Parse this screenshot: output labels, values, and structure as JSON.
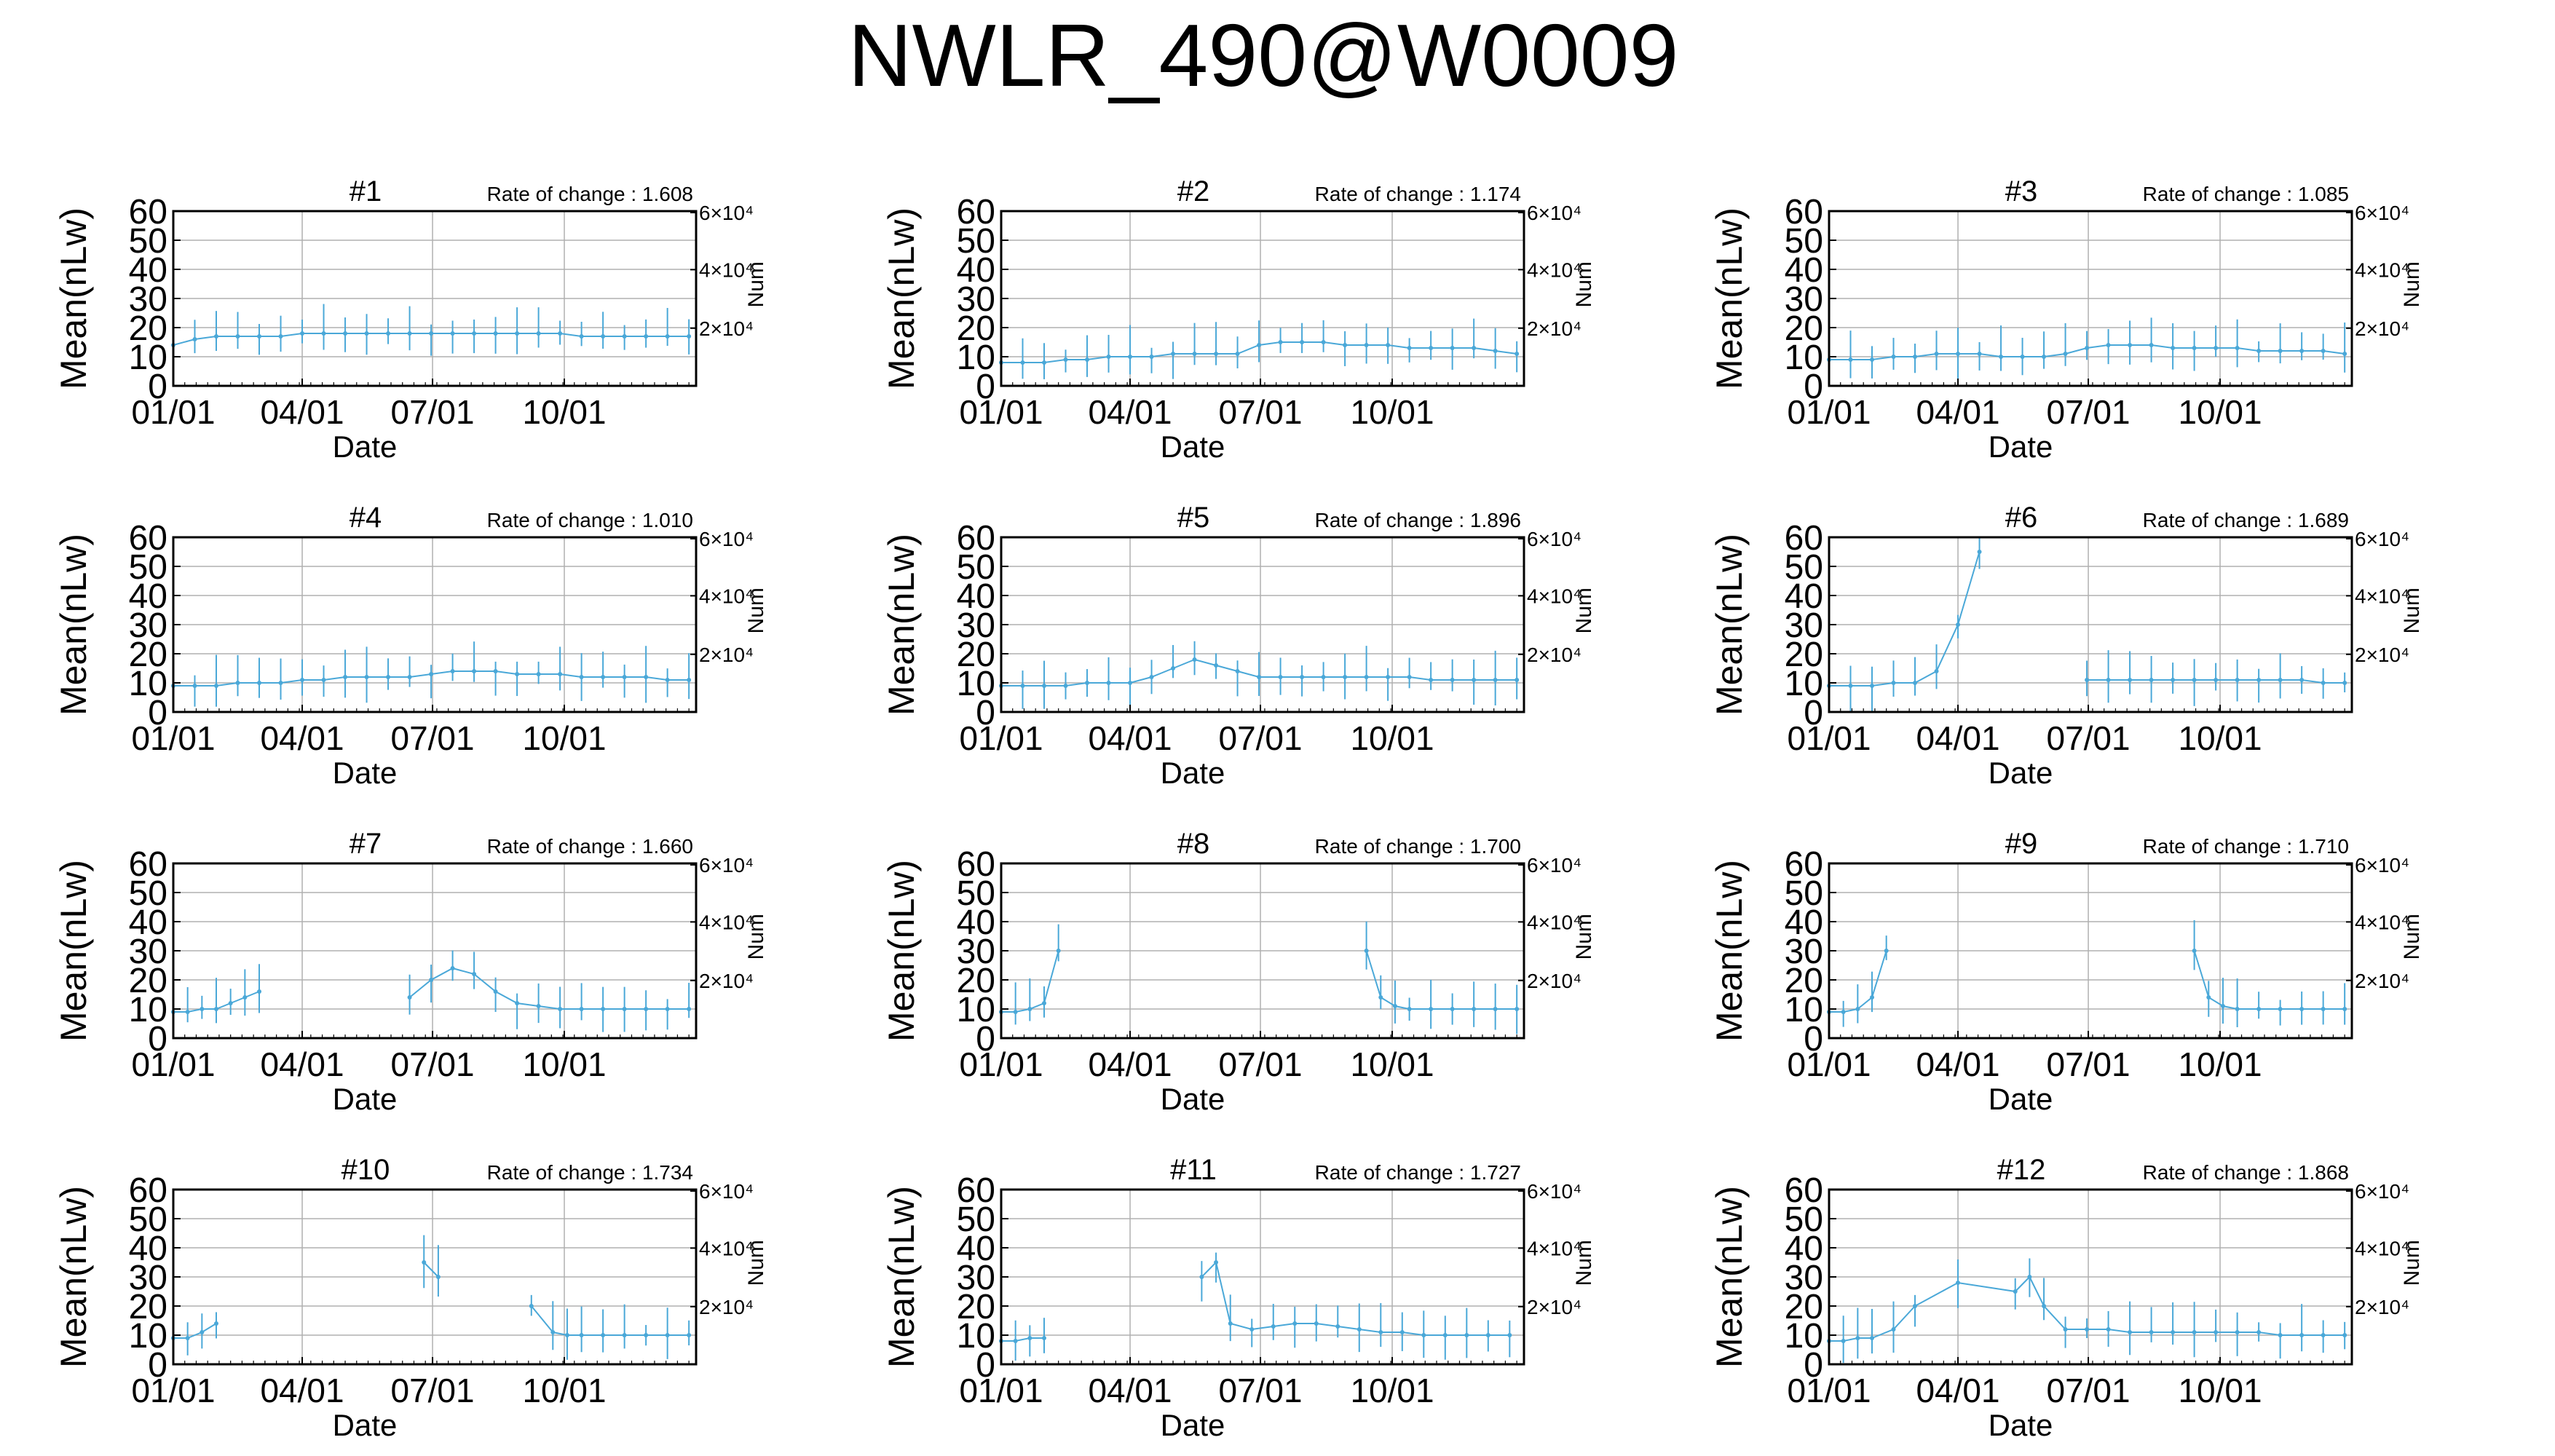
{
  "title": "NWLR_490@W0009",
  "colors": {
    "series": "#4aa8d8",
    "axis": "#000000",
    "grid": "#b0b0b0",
    "background": "#ffffff"
  },
  "chart_data": [
    {
      "type": "line",
      "panel_title": "#1",
      "rate_text": "Rate of change : 1.608",
      "xlabel": "Date",
      "ylabel": "Mean(nLw)",
      "y2label": "Num",
      "x_ticks": [
        "01/01",
        "04/01",
        "07/01",
        "10/01"
      ],
      "y_ticks": [
        0,
        10,
        20,
        30,
        40,
        50,
        60
      ],
      "y2_ticks": [
        "2×10⁴",
        "4×10⁴",
        "6×10⁴"
      ],
      "ylim": [
        0,
        60
      ],
      "xlim_days": [
        0,
        365
      ],
      "grid": true,
      "series": [
        {
          "x_days": [
            0,
            15,
            30,
            45,
            60,
            75,
            90,
            105,
            120,
            135,
            150,
            165,
            180,
            195,
            210,
            225,
            240,
            255,
            270,
            285,
            300,
            315,
            330,
            345,
            360
          ],
          "values": [
            14,
            16,
            17,
            17,
            17,
            17,
            18,
            18,
            18,
            18,
            18,
            18,
            18,
            18,
            18,
            18,
            18,
            18,
            18,
            17,
            17,
            17,
            17,
            17,
            17
          ]
        }
      ]
    },
    {
      "type": "line",
      "panel_title": "#2",
      "rate_text": "Rate of change : 1.174",
      "xlabel": "Date",
      "ylabel": "Mean(nLw)",
      "y2label": "Num",
      "x_ticks": [
        "01/01",
        "04/01",
        "07/01",
        "10/01"
      ],
      "y_ticks": [
        0,
        10,
        20,
        30,
        40,
        50,
        60
      ],
      "y2_ticks": [
        "2×10⁴",
        "4×10⁴",
        "6×10⁴"
      ],
      "ylim": [
        0,
        60
      ],
      "xlim_days": [
        0,
        365
      ],
      "grid": true,
      "series": [
        {
          "x_days": [
            0,
            15,
            30,
            45,
            60,
            75,
            90,
            105,
            120,
            135,
            150,
            165,
            180,
            195,
            210,
            225,
            240,
            255,
            270,
            285,
            300,
            315,
            330,
            345,
            360
          ],
          "values": [
            8,
            8,
            8,
            9,
            9,
            10,
            10,
            10,
            11,
            11,
            11,
            11,
            14,
            15,
            15,
            15,
            14,
            14,
            14,
            13,
            13,
            13,
            13,
            12,
            11
          ]
        }
      ]
    },
    {
      "type": "line",
      "panel_title": "#3",
      "rate_text": "Rate of change : 1.085",
      "xlabel": "Date",
      "ylabel": "Mean(nLw)",
      "y2label": "Num",
      "x_ticks": [
        "01/01",
        "04/01",
        "07/01",
        "10/01"
      ],
      "y_ticks": [
        0,
        10,
        20,
        30,
        40,
        50,
        60
      ],
      "y2_ticks": [
        "2×10⁴",
        "4×10⁴",
        "6×10⁴"
      ],
      "ylim": [
        0,
        60
      ],
      "xlim_days": [
        0,
        365
      ],
      "grid": true,
      "series": [
        {
          "x_days": [
            0,
            15,
            30,
            45,
            60,
            75,
            90,
            105,
            120,
            135,
            150,
            165,
            180,
            195,
            210,
            225,
            240,
            255,
            270,
            285,
            300,
            315,
            330,
            345,
            360
          ],
          "values": [
            9,
            9,
            9,
            10,
            10,
            11,
            11,
            11,
            10,
            10,
            10,
            11,
            13,
            14,
            14,
            14,
            13,
            13,
            13,
            13,
            12,
            12,
            12,
            12,
            11
          ]
        }
      ]
    },
    {
      "type": "line",
      "panel_title": "#4",
      "rate_text": "Rate of change : 1.010",
      "xlabel": "Date",
      "ylabel": "Mean(nLw)",
      "y2label": "Num",
      "x_ticks": [
        "01/01",
        "04/01",
        "07/01",
        "10/01"
      ],
      "y_ticks": [
        0,
        10,
        20,
        30,
        40,
        50,
        60
      ],
      "y2_ticks": [
        "2×10⁴",
        "4×10⁴",
        "6×10⁴"
      ],
      "ylim": [
        0,
        60
      ],
      "xlim_days": [
        0,
        365
      ],
      "grid": true,
      "series": [
        {
          "x_days": [
            0,
            15,
            30,
            45,
            60,
            75,
            90,
            105,
            120,
            135,
            150,
            165,
            180,
            195,
            210,
            225,
            240,
            255,
            270,
            285,
            300,
            315,
            330,
            345,
            360
          ],
          "values": [
            9,
            9,
            9,
            10,
            10,
            10,
            11,
            11,
            12,
            12,
            12,
            12,
            13,
            14,
            14,
            14,
            13,
            13,
            13,
            12,
            12,
            12,
            12,
            11,
            11
          ]
        }
      ]
    },
    {
      "type": "line",
      "panel_title": "#5",
      "rate_text": "Rate of change : 1.896",
      "xlabel": "Date",
      "ylabel": "Mean(nLw)",
      "y2label": "Num",
      "x_ticks": [
        "01/01",
        "04/01",
        "07/01",
        "10/01"
      ],
      "y_ticks": [
        0,
        10,
        20,
        30,
        40,
        50,
        60
      ],
      "y2_ticks": [
        "2×10⁴",
        "4×10⁴",
        "6×10⁴"
      ],
      "ylim": [
        0,
        60
      ],
      "xlim_days": [
        0,
        365
      ],
      "grid": true,
      "series": [
        {
          "x_days": [
            0,
            15,
            30,
            45,
            60,
            75,
            90,
            105,
            120,
            135,
            150,
            165,
            180,
            195,
            210,
            225,
            240,
            255,
            270,
            285,
            300,
            315,
            330,
            345,
            360
          ],
          "values": [
            9,
            9,
            9,
            9,
            10,
            10,
            10,
            12,
            15,
            18,
            16,
            14,
            12,
            12,
            12,
            12,
            12,
            12,
            12,
            12,
            11,
            11,
            11,
            11,
            11
          ]
        }
      ]
    },
    {
      "type": "line",
      "panel_title": "#6",
      "rate_text": "Rate of change : 1.689",
      "xlabel": "Date",
      "ylabel": "Mean(nLw)",
      "y2label": "Num",
      "x_ticks": [
        "01/01",
        "04/01",
        "07/01",
        "10/01"
      ],
      "y_ticks": [
        0,
        10,
        20,
        30,
        40,
        50,
        60
      ],
      "y2_ticks": [
        "2×10⁴",
        "4×10⁴",
        "6×10⁴"
      ],
      "ylim": [
        0,
        60
      ],
      "xlim_days": [
        0,
        365
      ],
      "grid": true,
      "series": [
        {
          "x_days": [
            0,
            15,
            30,
            45,
            60,
            75,
            90,
            105,
            180,
            195,
            210,
            225,
            240,
            255,
            270,
            285,
            300,
            315,
            330,
            345,
            360
          ],
          "values": [
            9,
            9,
            9,
            10,
            10,
            14,
            30,
            55,
            11,
            11,
            11,
            11,
            11,
            11,
            11,
            11,
            11,
            11,
            11,
            10,
            10
          ]
        }
      ]
    },
    {
      "type": "line",
      "panel_title": "#7",
      "rate_text": "Rate of change : 1.660",
      "xlabel": "Date",
      "ylabel": "Mean(nLw)",
      "y2label": "Num",
      "x_ticks": [
        "01/01",
        "04/01",
        "07/01",
        "10/01"
      ],
      "y_ticks": [
        0,
        10,
        20,
        30,
        40,
        50,
        60
      ],
      "y2_ticks": [
        "2×10⁴",
        "4×10⁴",
        "6×10⁴"
      ],
      "ylim": [
        0,
        60
      ],
      "xlim_days": [
        0,
        365
      ],
      "grid": true,
      "series": [
        {
          "x_days": [
            0,
            10,
            20,
            30,
            40,
            50,
            60,
            165,
            180,
            195,
            210,
            225,
            240,
            255,
            270,
            285,
            300,
            315,
            330,
            345,
            360
          ],
          "values": [
            9,
            9,
            10,
            10,
            12,
            14,
            16,
            14,
            20,
            24,
            22,
            16,
            12,
            11,
            10,
            10,
            10,
            10,
            10,
            10,
            10
          ]
        }
      ]
    },
    {
      "type": "line",
      "panel_title": "#8",
      "rate_text": "Rate of change : 1.700",
      "xlabel": "Date",
      "ylabel": "Mean(nLw)",
      "y2label": "Num",
      "x_ticks": [
        "01/01",
        "04/01",
        "07/01",
        "10/01"
      ],
      "y_ticks": [
        0,
        10,
        20,
        30,
        40,
        50,
        60
      ],
      "y2_ticks": [
        "2×10⁴",
        "4×10⁴",
        "6×10⁴"
      ],
      "ylim": [
        0,
        60
      ],
      "xlim_days": [
        0,
        365
      ],
      "grid": true,
      "series": [
        {
          "x_days": [
            0,
            10,
            20,
            30,
            40,
            255,
            265,
            275,
            285,
            300,
            315,
            330,
            345,
            360
          ],
          "values": [
            9,
            9,
            10,
            12,
            30,
            30,
            14,
            11,
            10,
            10,
            10,
            10,
            10,
            10
          ]
        }
      ]
    },
    {
      "type": "line",
      "panel_title": "#9",
      "rate_text": "Rate of change : 1.710",
      "xlabel": "Date",
      "ylabel": "Mean(nLw)",
      "y2label": "Num",
      "x_ticks": [
        "01/01",
        "04/01",
        "07/01",
        "10/01"
      ],
      "y_ticks": [
        0,
        10,
        20,
        30,
        40,
        50,
        60
      ],
      "y2_ticks": [
        "2×10⁴",
        "4×10⁴",
        "6×10⁴"
      ],
      "ylim": [
        0,
        60
      ],
      "xlim_days": [
        0,
        365
      ],
      "grid": true,
      "series": [
        {
          "x_days": [
            0,
            10,
            20,
            30,
            40,
            255,
            265,
            275,
            285,
            300,
            315,
            330,
            345,
            360
          ],
          "values": [
            9,
            9,
            10,
            14,
            30,
            30,
            14,
            11,
            10,
            10,
            10,
            10,
            10,
            10
          ]
        }
      ]
    },
    {
      "type": "line",
      "panel_title": "#10",
      "rate_text": "Rate of change : 1.734",
      "xlabel": "Date",
      "ylabel": "Mean(nLw)",
      "y2label": "Num",
      "x_ticks": [
        "01/01",
        "04/01",
        "07/01",
        "10/01"
      ],
      "y_ticks": [
        0,
        10,
        20,
        30,
        40,
        50,
        60
      ],
      "y2_ticks": [
        "2×10⁴",
        "4×10⁴",
        "6×10⁴"
      ],
      "ylim": [
        0,
        60
      ],
      "xlim_days": [
        0,
        365
      ],
      "grid": true,
      "series": [
        {
          "x_days": [
            0,
            10,
            20,
            30,
            175,
            185,
            250,
            265,
            275,
            285,
            300,
            315,
            330,
            345,
            360
          ],
          "values": [
            9,
            9,
            11,
            14,
            35,
            30,
            20,
            11,
            10,
            10,
            10,
            10,
            10,
            10,
            10
          ]
        }
      ]
    },
    {
      "type": "line",
      "panel_title": "#11",
      "rate_text": "Rate of change : 1.727",
      "xlabel": "Date",
      "ylabel": "Mean(nLw)",
      "y2label": "Num",
      "x_ticks": [
        "01/01",
        "04/01",
        "07/01",
        "10/01"
      ],
      "y_ticks": [
        0,
        10,
        20,
        30,
        40,
        50,
        60
      ],
      "y2_ticks": [
        "2×10⁴",
        "4×10⁴",
        "6×10⁴"
      ],
      "ylim": [
        0,
        60
      ],
      "xlim_days": [
        0,
        365
      ],
      "grid": true,
      "series": [
        {
          "x_days": [
            0,
            10,
            20,
            30,
            140,
            150,
            160,
            175,
            190,
            205,
            220,
            235,
            250,
            265,
            280,
            295,
            310,
            325,
            340,
            355
          ],
          "values": [
            8,
            8,
            9,
            9,
            30,
            35,
            14,
            12,
            13,
            14,
            14,
            13,
            12,
            11,
            11,
            10,
            10,
            10,
            10,
            10
          ]
        }
      ]
    },
    {
      "type": "line",
      "panel_title": "#12",
      "rate_text": "Rate of change : 1.868",
      "xlabel": "Date",
      "ylabel": "Mean(nLw)",
      "y2label": "Num",
      "x_ticks": [
        "01/01",
        "04/01",
        "07/01",
        "10/01"
      ],
      "y_ticks": [
        0,
        10,
        20,
        30,
        40,
        50,
        60
      ],
      "y2_ticks": [
        "2×10⁴",
        "4×10⁴",
        "6×10⁴"
      ],
      "ylim": [
        0,
        60
      ],
      "xlim_days": [
        0,
        365
      ],
      "grid": true,
      "series": [
        {
          "x_days": [
            0,
            10,
            20,
            30,
            45,
            60,
            90,
            130,
            140,
            150,
            165,
            180,
            195,
            210,
            225,
            240,
            255,
            270,
            285,
            300,
            315,
            330,
            345,
            360
          ],
          "values": [
            8,
            8,
            9,
            9,
            12,
            20,
            28,
            25,
            30,
            20,
            12,
            12,
            12,
            11,
            11,
            11,
            11,
            11,
            11,
            11,
            10,
            10,
            10,
            10
          ]
        }
      ]
    }
  ]
}
